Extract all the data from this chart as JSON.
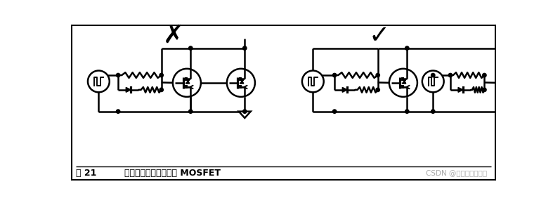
{
  "fig_width": 7.87,
  "fig_height": 2.89,
  "dpi": 100,
  "background_color": "#ffffff",
  "line_color": "#000000",
  "line_width": 1.8,
  "caption_left": "图 21",
  "caption_middle": "与分离栅极驱动并联的 MOSFET",
  "caption_right": "CSDN @小幽余生不加糖",
  "caption_right_color": "#aaaaaa",
  "wrong_mark": "✗",
  "correct_mark": "✓"
}
